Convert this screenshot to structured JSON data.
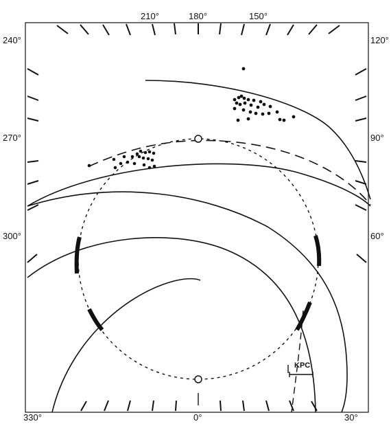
{
  "labels": {
    "top": [
      "210°",
      "180°",
      "150°"
    ],
    "bottom": [
      "330°",
      "0°",
      "30°"
    ],
    "left": [
      "240°",
      "270°",
      "300°"
    ],
    "right": [
      "120°",
      "90°",
      "60°"
    ]
  },
  "scale_bar": {
    "label": "KPC",
    "length_kpc": 1
  },
  "colors": {
    "ink": "#111111",
    "background": "#ffffff"
  }
}
